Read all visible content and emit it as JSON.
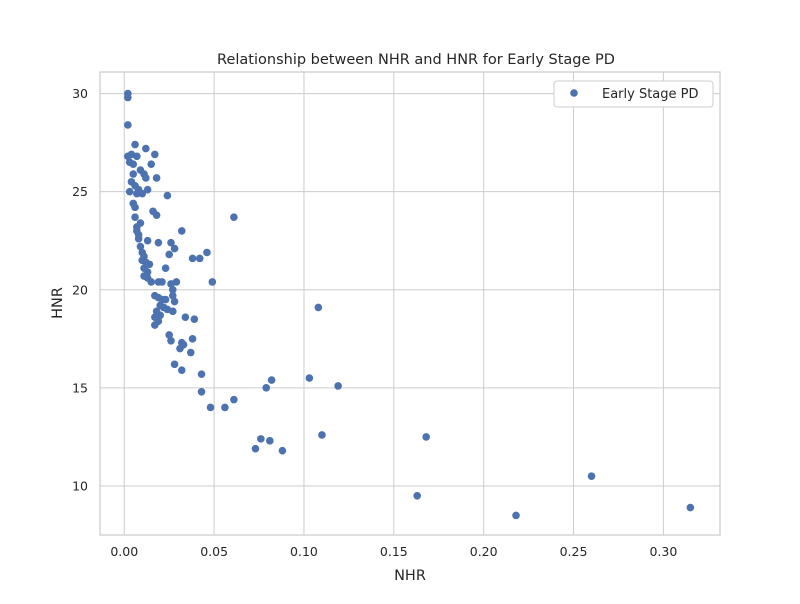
{
  "chart_data": {
    "type": "scatter",
    "title": "Relationship between NHR and HNR for Early Stage PD",
    "xlabel": "NHR",
    "ylabel": "HNR",
    "xlim": [
      -0.0135,
      0.3315
    ],
    "ylim": [
      7.5,
      31.1
    ],
    "x_ticks": [
      0.0,
      0.05,
      0.1,
      0.15,
      0.2,
      0.25,
      0.3
    ],
    "x_tick_labels": [
      "0.00",
      "0.05",
      "0.10",
      "0.15",
      "0.20",
      "0.25",
      "0.30"
    ],
    "y_ticks": [
      10,
      15,
      20,
      25,
      30
    ],
    "y_tick_labels": [
      "10",
      "15",
      "20",
      "25",
      "30"
    ],
    "grid": true,
    "legend_position": "upper-right",
    "series": [
      {
        "name": "Early Stage PD",
        "color": "#4c72b0",
        "points": [
          {
            "x": 0.002,
            "y": 30.0
          },
          {
            "x": 0.002,
            "y": 29.8
          },
          {
            "x": 0.002,
            "y": 28.4
          },
          {
            "x": 0.006,
            "y": 27.4
          },
          {
            "x": 0.012,
            "y": 27.2
          },
          {
            "x": 0.017,
            "y": 26.9
          },
          {
            "x": 0.002,
            "y": 26.8
          },
          {
            "x": 0.004,
            "y": 26.9
          },
          {
            "x": 0.007,
            "y": 26.8
          },
          {
            "x": 0.003,
            "y": 26.5
          },
          {
            "x": 0.005,
            "y": 26.4
          },
          {
            "x": 0.015,
            "y": 26.4
          },
          {
            "x": 0.009,
            "y": 26.1
          },
          {
            "x": 0.005,
            "y": 25.9
          },
          {
            "x": 0.011,
            "y": 25.9
          },
          {
            "x": 0.012,
            "y": 25.7
          },
          {
            "x": 0.018,
            "y": 25.7
          },
          {
            "x": 0.004,
            "y": 25.5
          },
          {
            "x": 0.006,
            "y": 25.3
          },
          {
            "x": 0.008,
            "y": 25.1
          },
          {
            "x": 0.013,
            "y": 25.1
          },
          {
            "x": 0.003,
            "y": 25.0
          },
          {
            "x": 0.007,
            "y": 24.9
          },
          {
            "x": 0.01,
            "y": 24.9
          },
          {
            "x": 0.024,
            "y": 24.8
          },
          {
            "x": 0.005,
            "y": 24.4
          },
          {
            "x": 0.006,
            "y": 24.2
          },
          {
            "x": 0.016,
            "y": 24.0
          },
          {
            "x": 0.018,
            "y": 23.8
          },
          {
            "x": 0.061,
            "y": 23.7
          },
          {
            "x": 0.006,
            "y": 23.7
          },
          {
            "x": 0.009,
            "y": 23.4
          },
          {
            "x": 0.007,
            "y": 23.2
          },
          {
            "x": 0.007,
            "y": 23.0
          },
          {
            "x": 0.032,
            "y": 23.0
          },
          {
            "x": 0.008,
            "y": 22.8
          },
          {
            "x": 0.008,
            "y": 22.6
          },
          {
            "x": 0.013,
            "y": 22.5
          },
          {
            "x": 0.019,
            "y": 22.4
          },
          {
            "x": 0.026,
            "y": 22.4
          },
          {
            "x": 0.009,
            "y": 22.2
          },
          {
            "x": 0.028,
            "y": 22.1
          },
          {
            "x": 0.01,
            "y": 21.9
          },
          {
            "x": 0.046,
            "y": 21.9
          },
          {
            "x": 0.025,
            "y": 21.8
          },
          {
            "x": 0.011,
            "y": 21.7
          },
          {
            "x": 0.038,
            "y": 21.6
          },
          {
            "x": 0.042,
            "y": 21.6
          },
          {
            "x": 0.01,
            "y": 21.5
          },
          {
            "x": 0.012,
            "y": 21.4
          },
          {
            "x": 0.014,
            "y": 21.3
          },
          {
            "x": 0.011,
            "y": 21.1
          },
          {
            "x": 0.023,
            "y": 21.1
          },
          {
            "x": 0.013,
            "y": 20.9
          },
          {
            "x": 0.011,
            "y": 20.7
          },
          {
            "x": 0.013,
            "y": 20.6
          },
          {
            "x": 0.015,
            "y": 20.4
          },
          {
            "x": 0.019,
            "y": 20.4
          },
          {
            "x": 0.021,
            "y": 20.4
          },
          {
            "x": 0.026,
            "y": 20.3
          },
          {
            "x": 0.029,
            "y": 20.4
          },
          {
            "x": 0.049,
            "y": 20.4
          },
          {
            "x": 0.027,
            "y": 20.0
          },
          {
            "x": 0.027,
            "y": 19.7
          },
          {
            "x": 0.017,
            "y": 19.7
          },
          {
            "x": 0.019,
            "y": 19.6
          },
          {
            "x": 0.021,
            "y": 19.5
          },
          {
            "x": 0.023,
            "y": 19.5
          },
          {
            "x": 0.028,
            "y": 19.4
          },
          {
            "x": 0.02,
            "y": 19.2
          },
          {
            "x": 0.022,
            "y": 19.1
          },
          {
            "x": 0.024,
            "y": 19.0
          },
          {
            "x": 0.018,
            "y": 18.9
          },
          {
            "x": 0.027,
            "y": 18.9
          },
          {
            "x": 0.02,
            "y": 18.7
          },
          {
            "x": 0.017,
            "y": 18.6
          },
          {
            "x": 0.034,
            "y": 18.6
          },
          {
            "x": 0.039,
            "y": 18.5
          },
          {
            "x": 0.019,
            "y": 18.4
          },
          {
            "x": 0.017,
            "y": 18.2
          },
          {
            "x": 0.108,
            "y": 19.1
          },
          {
            "x": 0.025,
            "y": 17.7
          },
          {
            "x": 0.038,
            "y": 17.5
          },
          {
            "x": 0.026,
            "y": 17.4
          },
          {
            "x": 0.032,
            "y": 17.3
          },
          {
            "x": 0.033,
            "y": 17.2
          },
          {
            "x": 0.031,
            "y": 17.0
          },
          {
            "x": 0.037,
            "y": 16.8
          },
          {
            "x": 0.028,
            "y": 16.2
          },
          {
            "x": 0.032,
            "y": 15.9
          },
          {
            "x": 0.043,
            "y": 15.7
          },
          {
            "x": 0.103,
            "y": 15.5
          },
          {
            "x": 0.082,
            "y": 15.4
          },
          {
            "x": 0.119,
            "y": 15.1
          },
          {
            "x": 0.079,
            "y": 15.0
          },
          {
            "x": 0.043,
            "y": 14.8
          },
          {
            "x": 0.061,
            "y": 14.4
          },
          {
            "x": 0.048,
            "y": 14.0
          },
          {
            "x": 0.056,
            "y": 14.0
          },
          {
            "x": 0.11,
            "y": 12.6
          },
          {
            "x": 0.168,
            "y": 12.5
          },
          {
            "x": 0.076,
            "y": 12.4
          },
          {
            "x": 0.081,
            "y": 12.3
          },
          {
            "x": 0.073,
            "y": 11.9
          },
          {
            "x": 0.088,
            "y": 11.8
          },
          {
            "x": 0.26,
            "y": 10.5
          },
          {
            "x": 0.163,
            "y": 9.5
          },
          {
            "x": 0.315,
            "y": 8.9
          },
          {
            "x": 0.218,
            "y": 8.5
          }
        ]
      }
    ]
  }
}
